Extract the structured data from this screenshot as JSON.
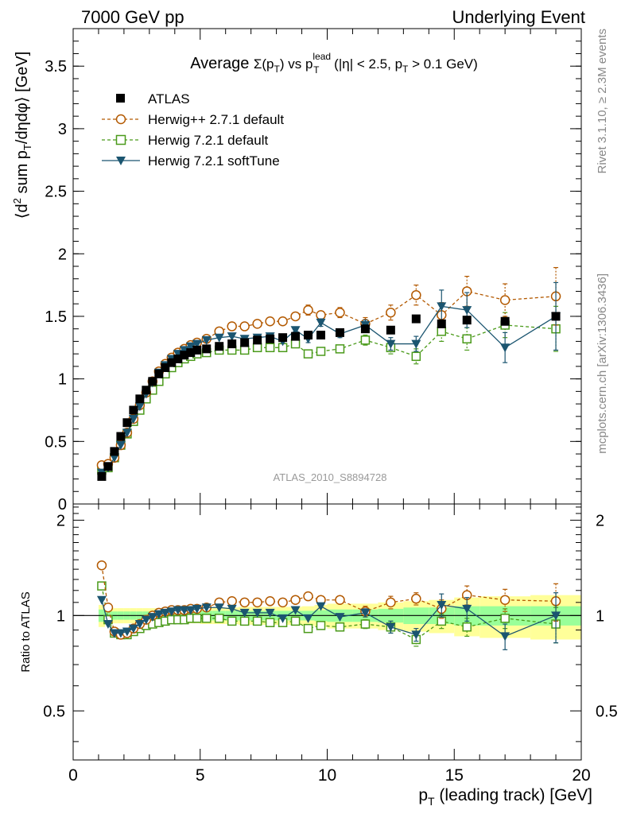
{
  "header": {
    "left": "7000 GeV pp",
    "right": "Underlying Event"
  },
  "side_labels": {
    "top": "Rivet 3.1.10, ≥ 2.3M events",
    "bottom": "mcplots.cern.ch [arXiv:1306.3436]"
  },
  "watermark": "ATLAS_2010_S8894728",
  "colors": {
    "atlas": "#000000",
    "herwigpp": "#b35900",
    "herwig721": "#4a9a1a",
    "softtune": "#1b5570",
    "band_inner": "#99ff99",
    "band_outer": "#ffff99"
  },
  "chart_data": [
    {
      "type": "scatter",
      "title": {
        "prefix": "Average ",
        "sigma": "Σ(p",
        "sigma_sub": "T",
        "sigma_close": ")",
        "vs": " vs p",
        "vs_sup": "lead",
        "vs_sub": "T",
        "cond1": " (|η| < 2.5, p",
        "cond_sub": "T",
        "cond2": " > 0.1 GeV)"
      },
      "ylabel": {
        "a": "⟨d",
        "sup": "2",
        "b": " sum p",
        "sub": "T",
        "c": "/dηdφ⟩ [GeV]"
      },
      "xlim": [
        0,
        20
      ],
      "ylim": [
        0,
        3.8
      ],
      "yticks": [
        0,
        0.5,
        1,
        1.5,
        2,
        2.5,
        3,
        3.5
      ],
      "yticklabels": [
        "0",
        "0.5",
        "1",
        "1.5",
        "2",
        "2.5",
        "3",
        "3.5"
      ],
      "legend": {
        "position": "top-left"
      },
      "series": [
        {
          "name": "ATLAS",
          "key": "atlas",
          "marker": "square-filled",
          "x": [
            1.125,
            1.375,
            1.625,
            1.875,
            2.125,
            2.375,
            2.625,
            2.875,
            3.125,
            3.375,
            3.625,
            3.875,
            4.125,
            4.375,
            4.625,
            4.875,
            5.25,
            5.75,
            6.25,
            6.75,
            7.25,
            7.75,
            8.25,
            8.75,
            9.25,
            9.75,
            10.5,
            11.5,
            12.5,
            13.5,
            14.5,
            15.5,
            17.0,
            19.0
          ],
          "y": [
            0.22,
            0.3,
            0.42,
            0.54,
            0.65,
            0.75,
            0.84,
            0.91,
            0.98,
            1.04,
            1.09,
            1.13,
            1.16,
            1.19,
            1.21,
            1.23,
            1.24,
            1.26,
            1.28,
            1.29,
            1.31,
            1.32,
            1.33,
            1.34,
            1.35,
            1.35,
            1.37,
            1.4,
            1.39,
            1.48,
            1.44,
            1.47,
            1.46,
            1.5
          ]
        },
        {
          "name": "Herwig++ 2.7.1 default",
          "key": "herwigpp",
          "marker": "circle-open",
          "dashed": true,
          "x": [
            1.125,
            1.375,
            1.625,
            1.875,
            2.125,
            2.375,
            2.625,
            2.875,
            3.125,
            3.375,
            3.625,
            3.875,
            4.125,
            4.375,
            4.625,
            4.875,
            5.25,
            5.75,
            6.25,
            6.75,
            7.25,
            7.75,
            8.25,
            8.75,
            9.25,
            9.75,
            10.5,
            11.5,
            12.5,
            13.5,
            14.5,
            15.5,
            17.0,
            19.0
          ],
          "y": [
            0.31,
            0.32,
            0.37,
            0.47,
            0.57,
            0.68,
            0.79,
            0.89,
            0.98,
            1.06,
            1.12,
            1.17,
            1.21,
            1.24,
            1.27,
            1.29,
            1.32,
            1.38,
            1.42,
            1.42,
            1.44,
            1.46,
            1.46,
            1.5,
            1.55,
            1.51,
            1.53,
            1.44,
            1.53,
            1.67,
            1.51,
            1.7,
            1.63,
            1.66
          ],
          "err": [
            0.01,
            0.01,
            0.01,
            0.01,
            0.01,
            0.01,
            0.01,
            0.01,
            0.01,
            0.01,
            0.01,
            0.01,
            0.01,
            0.01,
            0.01,
            0.01,
            0.01,
            0.01,
            0.01,
            0.01,
            0.01,
            0.01,
            0.01,
            0.02,
            0.04,
            0.03,
            0.04,
            0.05,
            0.06,
            0.08,
            0.1,
            0.12,
            0.13,
            0.23
          ]
        },
        {
          "name": "Herwig 7.2.1 default",
          "key": "herwig721",
          "marker": "square-open",
          "dashed": true,
          "x": [
            1.125,
            1.375,
            1.625,
            1.875,
            2.125,
            2.375,
            2.625,
            2.875,
            3.125,
            3.375,
            3.625,
            3.875,
            4.125,
            4.375,
            4.625,
            4.875,
            5.25,
            5.75,
            6.25,
            6.75,
            7.25,
            7.75,
            8.25,
            8.75,
            9.25,
            9.75,
            10.5,
            11.5,
            12.5,
            13.5,
            14.5,
            15.5,
            17.0,
            19.0
          ],
          "y": [
            0.27,
            0.29,
            0.37,
            0.47,
            0.56,
            0.66,
            0.75,
            0.84,
            0.91,
            0.98,
            1.04,
            1.09,
            1.13,
            1.16,
            1.18,
            1.2,
            1.21,
            1.23,
            1.23,
            1.23,
            1.25,
            1.25,
            1.25,
            1.28,
            1.2,
            1.22,
            1.24,
            1.31,
            1.25,
            1.18,
            1.38,
            1.32,
            1.43,
            1.4
          ],
          "err": [
            0.01,
            0.01,
            0.01,
            0.01,
            0.01,
            0.01,
            0.01,
            0.01,
            0.01,
            0.01,
            0.01,
            0.01,
            0.01,
            0.01,
            0.01,
            0.01,
            0.01,
            0.01,
            0.01,
            0.01,
            0.01,
            0.01,
            0.01,
            0.02,
            0.03,
            0.03,
            0.03,
            0.04,
            0.05,
            0.06,
            0.08,
            0.09,
            0.1,
            0.18
          ]
        },
        {
          "name": "Herwig 7.2.1 softTune",
          "key": "softtune",
          "marker": "triangle-down",
          "dashed": false,
          "x": [
            1.125,
            1.375,
            1.625,
            1.875,
            2.125,
            2.375,
            2.625,
            2.875,
            3.125,
            3.375,
            3.625,
            3.875,
            4.125,
            4.375,
            4.625,
            4.875,
            5.25,
            5.75,
            6.25,
            6.75,
            7.25,
            7.75,
            8.25,
            8.75,
            9.25,
            9.75,
            10.5,
            11.5,
            12.5,
            13.5,
            14.5,
            15.5,
            17.0,
            19.0
          ],
          "y": [
            0.25,
            0.29,
            0.37,
            0.47,
            0.57,
            0.68,
            0.78,
            0.88,
            0.97,
            1.05,
            1.11,
            1.16,
            1.2,
            1.23,
            1.26,
            1.28,
            1.31,
            1.33,
            1.34,
            1.32,
            1.33,
            1.34,
            1.3,
            1.39,
            1.32,
            1.45,
            1.36,
            1.43,
            1.28,
            1.28,
            1.58,
            1.55,
            1.25,
            1.5
          ],
          "err": [
            0.01,
            0.01,
            0.01,
            0.01,
            0.01,
            0.01,
            0.01,
            0.01,
            0.01,
            0.01,
            0.01,
            0.01,
            0.01,
            0.01,
            0.01,
            0.01,
            0.01,
            0.01,
            0.01,
            0.01,
            0.01,
            0.01,
            0.01,
            0.02,
            0.03,
            0.03,
            0.03,
            0.04,
            0.05,
            0.06,
            0.13,
            0.14,
            0.12,
            0.27
          ]
        }
      ]
    },
    {
      "type": "scatter",
      "ylabel": "Ratio to ATLAS",
      "xlabel": {
        "a": "p",
        "sub": "T",
        "b": " (leading track) [GeV]"
      },
      "xlim": [
        0,
        20
      ],
      "ylim": [
        0.35,
        2.25
      ],
      "xticks": [
        0,
        5,
        10,
        15,
        20
      ],
      "xticklabels": [
        "0",
        "5",
        "10",
        "15",
        "20"
      ],
      "yticks": [
        0.5,
        1,
        2
      ],
      "yticklabels": [
        "0.5",
        "1",
        "2"
      ],
      "reference_line": 1,
      "bands": {
        "x_edges": [
          1.0,
          1.25,
          1.5,
          1.75,
          2.0,
          2.25,
          2.5,
          2.75,
          3.0,
          3.25,
          3.5,
          3.75,
          4.0,
          4.25,
          4.5,
          4.75,
          5.0,
          5.5,
          6.0,
          6.5,
          7.0,
          7.5,
          8.0,
          8.5,
          9.0,
          9.5,
          10.0,
          11.0,
          12.0,
          13.0,
          14.0,
          15.0,
          16.0,
          18.0,
          20.0
        ],
        "inner": [
          0.045,
          0.035,
          0.03,
          0.03,
          0.03,
          0.03,
          0.03,
          0.03,
          0.03,
          0.03,
          0.03,
          0.03,
          0.03,
          0.03,
          0.03,
          0.03,
          0.035,
          0.035,
          0.035,
          0.035,
          0.035,
          0.035,
          0.035,
          0.035,
          0.035,
          0.04,
          0.045,
          0.045,
          0.05,
          0.06,
          0.06,
          0.07,
          0.07,
          0.07
        ],
        "outer": [
          0.08,
          0.06,
          0.055,
          0.055,
          0.055,
          0.055,
          0.055,
          0.055,
          0.055,
          0.055,
          0.055,
          0.055,
          0.055,
          0.055,
          0.055,
          0.055,
          0.06,
          0.06,
          0.06,
          0.065,
          0.065,
          0.065,
          0.065,
          0.065,
          0.07,
          0.08,
          0.09,
          0.09,
          0.1,
          0.11,
          0.12,
          0.14,
          0.15,
          0.16
        ]
      },
      "series": [
        {
          "name": "Herwig++ 2.7.1 default",
          "key": "herwigpp",
          "marker": "circle-open",
          "dashed": true,
          "x": [
            1.125,
            1.375,
            1.625,
            1.875,
            2.125,
            2.375,
            2.625,
            2.875,
            3.125,
            3.375,
            3.625,
            3.875,
            4.125,
            4.375,
            4.625,
            4.875,
            5.25,
            5.75,
            6.25,
            6.75,
            7.25,
            7.75,
            8.25,
            8.75,
            9.25,
            9.75,
            10.5,
            11.5,
            12.5,
            13.5,
            14.5,
            15.5,
            17.0,
            19.0
          ],
          "y": [
            1.44,
            1.06,
            0.89,
            0.87,
            0.88,
            0.91,
            0.94,
            0.97,
            1.0,
            1.02,
            1.03,
            1.04,
            1.04,
            1.04,
            1.05,
            1.05,
            1.06,
            1.1,
            1.11,
            1.1,
            1.1,
            1.11,
            1.1,
            1.12,
            1.15,
            1.12,
            1.12,
            1.03,
            1.1,
            1.13,
            1.05,
            1.16,
            1.12,
            1.11
          ],
          "err": [
            0.02,
            0.02,
            0.01,
            0.01,
            0.01,
            0.01,
            0.01,
            0.01,
            0.01,
            0.01,
            0.01,
            0.01,
            0.01,
            0.01,
            0.01,
            0.01,
            0.01,
            0.01,
            0.01,
            0.01,
            0.01,
            0.01,
            0.01,
            0.015,
            0.03,
            0.02,
            0.03,
            0.04,
            0.05,
            0.05,
            0.07,
            0.08,
            0.09,
            0.15
          ]
        },
        {
          "name": "Herwig 7.2.1 default",
          "key": "herwig721",
          "marker": "square-open",
          "dashed": true,
          "x": [
            1.125,
            1.375,
            1.625,
            1.875,
            2.125,
            2.375,
            2.625,
            2.875,
            3.125,
            3.375,
            3.625,
            3.875,
            4.125,
            4.375,
            4.625,
            4.875,
            5.25,
            5.75,
            6.25,
            6.75,
            7.25,
            7.75,
            8.25,
            8.75,
            9.25,
            9.75,
            10.5,
            11.5,
            12.5,
            13.5,
            14.5,
            15.5,
            17.0,
            19.0
          ],
          "y": [
            1.24,
            0.97,
            0.88,
            0.87,
            0.87,
            0.89,
            0.91,
            0.93,
            0.94,
            0.95,
            0.96,
            0.97,
            0.97,
            0.97,
            0.98,
            0.98,
            0.98,
            0.98,
            0.96,
            0.96,
            0.96,
            0.95,
            0.95,
            0.96,
            0.91,
            0.93,
            0.92,
            0.94,
            0.92,
            0.84,
            0.96,
            0.92,
            0.98,
            0.94
          ],
          "err": [
            0.02,
            0.02,
            0.01,
            0.01,
            0.01,
            0.01,
            0.01,
            0.01,
            0.01,
            0.01,
            0.01,
            0.01,
            0.01,
            0.01,
            0.01,
            0.01,
            0.01,
            0.01,
            0.01,
            0.01,
            0.01,
            0.01,
            0.01,
            0.015,
            0.02,
            0.02,
            0.02,
            0.03,
            0.04,
            0.04,
            0.05,
            0.06,
            0.07,
            0.12
          ]
        },
        {
          "name": "Herwig 7.2.1 softTune",
          "key": "softtune",
          "marker": "triangle-down",
          "dashed": false,
          "x": [
            1.125,
            1.375,
            1.625,
            1.875,
            2.125,
            2.375,
            2.625,
            2.875,
            3.125,
            3.375,
            3.625,
            3.875,
            4.125,
            4.375,
            4.625,
            4.875,
            5.25,
            5.75,
            6.25,
            6.75,
            7.25,
            7.75,
            8.25,
            8.75,
            9.25,
            9.75,
            10.5,
            11.5,
            12.5,
            13.5,
            14.5,
            15.5,
            17.0,
            19.0
          ],
          "y": [
            1.12,
            0.94,
            0.88,
            0.88,
            0.89,
            0.91,
            0.94,
            0.97,
            0.99,
            1.01,
            1.02,
            1.03,
            1.04,
            1.04,
            1.04,
            1.05,
            1.06,
            1.06,
            1.05,
            1.02,
            1.02,
            1.02,
            0.98,
            1.04,
            0.98,
            1.07,
            0.99,
            1.02,
            0.92,
            0.87,
            1.08,
            1.05,
            0.86,
            1.0
          ],
          "err": [
            0.02,
            0.02,
            0.01,
            0.01,
            0.01,
            0.01,
            0.01,
            0.01,
            0.01,
            0.01,
            0.01,
            0.01,
            0.01,
            0.01,
            0.01,
            0.01,
            0.01,
            0.01,
            0.01,
            0.01,
            0.01,
            0.01,
            0.01,
            0.015,
            0.02,
            0.02,
            0.02,
            0.03,
            0.04,
            0.04,
            0.09,
            0.09,
            0.08,
            0.18
          ]
        }
      ]
    }
  ]
}
